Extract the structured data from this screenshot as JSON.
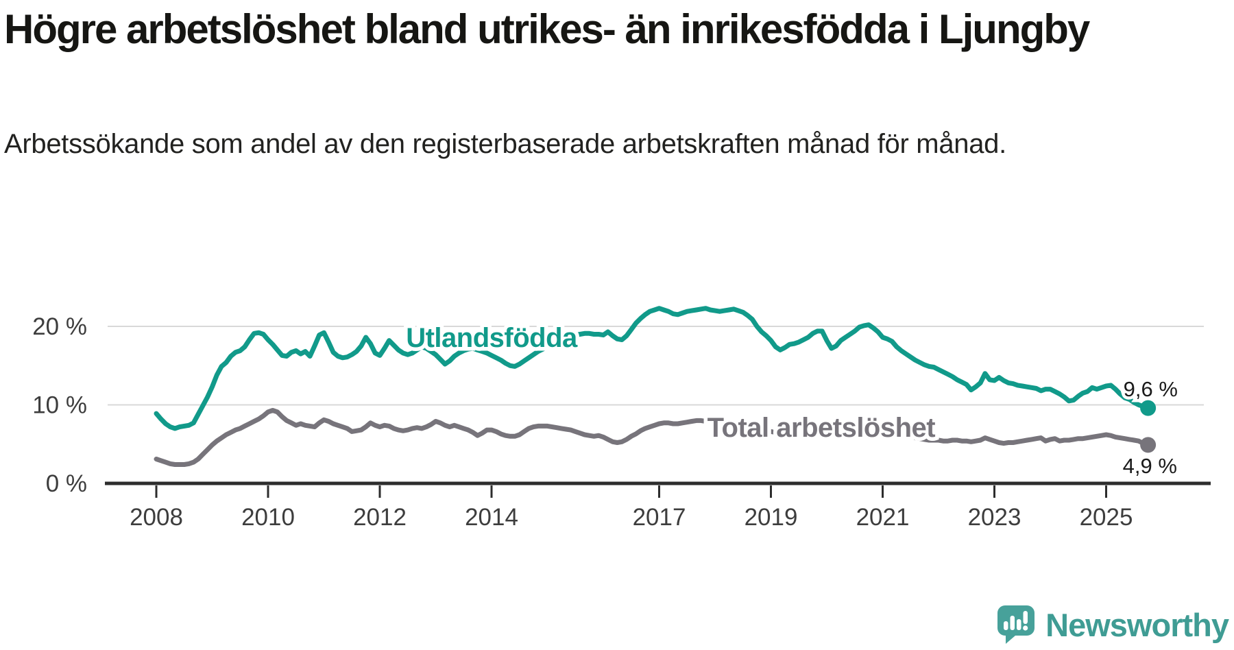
{
  "header": {
    "title": "Högre arbetslöshet bland utrikes- än inrikesfödda i Ljungby",
    "subtitle": "Arbetssökande som andel av den registerbaserade arbetskraften månad för månad."
  },
  "branding": {
    "logo_text": "Newsworthy",
    "logo_icon": "newsworthy-speech-bubble-bar-chart-icon"
  },
  "colors": {
    "foreign_born_line": "#119a8a",
    "total_line": "#77747b",
    "gridline": "#d8d8d8",
    "axis": "#2d2d2d",
    "axis_text": "#3d3d3d",
    "end_label_text": "#1a1a1a",
    "logo_teal": "#47a19a",
    "background": "#ffffff"
  },
  "chart_data": {
    "type": "line",
    "title": "Högre arbetslöshet bland utrikes- än inrikesfödda i Ljungby",
    "subtitle": "Arbetssökande som andel av den registerbaserade arbetskraften månad för månad.",
    "xlabel": "",
    "ylabel": "",
    "unit": "%",
    "grid": "horizontal-only",
    "x_start_year": 2008,
    "points_per_year": 12,
    "xlim": [
      2008,
      2025.75
    ],
    "ylim": [
      0,
      24
    ],
    "x_ticks": [
      {
        "year": 2008,
        "label": "2008"
      },
      {
        "year": 2010,
        "label": "2010"
      },
      {
        "year": 2012,
        "label": "2012"
      },
      {
        "year": 2014,
        "label": "2014"
      },
      {
        "year": 2017,
        "label": "2017"
      },
      {
        "year": 2019,
        "label": "2019"
      },
      {
        "year": 2021,
        "label": "2021"
      },
      {
        "year": 2023,
        "label": "2023"
      },
      {
        "year": 2025,
        "label": "2025"
      }
    ],
    "y_ticks": [
      {
        "value": 0,
        "label": "0 %"
      },
      {
        "value": 10,
        "label": "10 %"
      },
      {
        "value": 20,
        "label": "20 %"
      }
    ],
    "series": [
      {
        "name": "Utlandsfödda",
        "color": "#119a8a",
        "label": {
          "text": "Utlandsfödda",
          "x": 2014.0,
          "y": 18.6
        },
        "end_label": "9,6 %",
        "end_value": 9.6,
        "values": [
          8.9,
          8.2,
          7.6,
          7.2,
          7.0,
          7.2,
          7.3,
          7.4,
          7.7,
          8.8,
          9.9,
          11.0,
          12.3,
          13.8,
          14.9,
          15.4,
          16.2,
          16.7,
          16.9,
          17.4,
          18.3,
          19.1,
          19.2,
          19.0,
          18.3,
          17.7,
          17.0,
          16.3,
          16.2,
          16.7,
          16.9,
          16.5,
          16.8,
          16.2,
          17.5,
          18.9,
          19.2,
          18.0,
          16.7,
          16.2,
          16.0,
          16.1,
          16.4,
          16.8,
          17.5,
          18.6,
          17.8,
          16.6,
          16.3,
          17.2,
          18.2,
          17.6,
          17.0,
          16.6,
          16.4,
          16.6,
          17.0,
          17.4,
          17.2,
          16.8,
          16.4,
          15.8,
          15.2,
          15.6,
          16.2,
          16.6,
          16.9,
          17.1,
          17.2,
          17.0,
          16.8,
          16.6,
          16.3,
          16.0,
          15.7,
          15.3,
          15.0,
          14.9,
          15.2,
          15.6,
          16.0,
          16.4,
          16.8,
          17.1,
          17.4,
          17.7,
          18.0,
          18.3,
          18.5,
          18.7,
          18.9,
          19.0,
          19.1,
          19.1,
          19.0,
          19.0,
          18.9,
          19.3,
          18.8,
          18.4,
          18.3,
          18.8,
          19.6,
          20.4,
          21.0,
          21.5,
          21.9,
          22.1,
          22.3,
          22.1,
          21.9,
          21.6,
          21.5,
          21.7,
          21.9,
          22.0,
          22.1,
          22.2,
          22.3,
          22.1,
          22.0,
          21.9,
          22.0,
          22.1,
          22.2,
          22.0,
          21.8,
          21.4,
          20.9,
          20.0,
          19.3,
          18.8,
          18.2,
          17.4,
          17.0,
          17.3,
          17.7,
          17.8,
          18.0,
          18.3,
          18.6,
          19.1,
          19.4,
          19.4,
          18.2,
          17.2,
          17.5,
          18.2,
          18.6,
          19.0,
          19.4,
          19.9,
          20.1,
          20.2,
          19.8,
          19.3,
          18.6,
          18.4,
          18.1,
          17.4,
          16.9,
          16.5,
          16.1,
          15.7,
          15.4,
          15.1,
          14.9,
          14.8,
          14.5,
          14.2,
          13.9,
          13.6,
          13.2,
          12.9,
          12.6,
          11.9,
          12.3,
          12.8,
          14.0,
          13.2,
          13.1,
          13.5,
          13.1,
          12.8,
          12.7,
          12.5,
          12.4,
          12.3,
          12.2,
          12.1,
          11.8,
          12.0,
          12.0,
          11.7,
          11.4,
          11.0,
          10.5,
          10.6,
          11.1,
          11.5,
          11.7,
          12.2,
          12.0,
          12.2,
          12.4,
          12.5,
          12.0,
          11.4,
          10.9,
          10.7,
          10.3,
          10.0,
          9.8,
          9.6
        ]
      },
      {
        "name": "Total arbetslöshet",
        "color": "#77747b",
        "label": {
          "text": "Total arbetslöshet",
          "x": 2019.9,
          "y": 7.15
        },
        "end_label": "4,9 %",
        "end_value": 4.9,
        "values": [
          3.1,
          2.9,
          2.7,
          2.5,
          2.4,
          2.4,
          2.4,
          2.5,
          2.7,
          3.1,
          3.7,
          4.3,
          4.9,
          5.4,
          5.8,
          6.2,
          6.5,
          6.8,
          7.0,
          7.3,
          7.6,
          7.9,
          8.2,
          8.6,
          9.1,
          9.3,
          9.1,
          8.5,
          8.0,
          7.7,
          7.4,
          7.6,
          7.4,
          7.3,
          7.2,
          7.7,
          8.1,
          7.9,
          7.6,
          7.4,
          7.2,
          7.0,
          6.6,
          6.7,
          6.8,
          7.2,
          7.7,
          7.4,
          7.2,
          7.4,
          7.3,
          7.0,
          6.8,
          6.7,
          6.8,
          7.0,
          7.1,
          7.0,
          7.2,
          7.5,
          7.9,
          7.7,
          7.4,
          7.2,
          7.4,
          7.2,
          7.0,
          6.8,
          6.5,
          6.1,
          6.4,
          6.8,
          6.8,
          6.6,
          6.3,
          6.1,
          6.0,
          6.0,
          6.2,
          6.6,
          7.0,
          7.2,
          7.3,
          7.3,
          7.3,
          7.2,
          7.1,
          7.0,
          6.9,
          6.8,
          6.6,
          6.4,
          6.2,
          6.1,
          6.0,
          6.1,
          5.9,
          5.6,
          5.3,
          5.2,
          5.3,
          5.6,
          6.0,
          6.3,
          6.7,
          7.0,
          7.2,
          7.4,
          7.6,
          7.7,
          7.7,
          7.6,
          7.6,
          7.7,
          7.8,
          7.9,
          8.0,
          8.0,
          7.9,
          7.8,
          7.6,
          7.5,
          7.4,
          7.3,
          7.2,
          7.1,
          7.0,
          6.9,
          6.8,
          6.8,
          6.7,
          6.7,
          6.6,
          6.5,
          6.4,
          6.4,
          6.3,
          6.3,
          6.3,
          6.4,
          6.4,
          6.5,
          6.5,
          6.6,
          6.7,
          6.8,
          7.0,
          7.2,
          7.3,
          7.3,
          7.2,
          7.1,
          7.0,
          6.9,
          6.8,
          6.8,
          6.8,
          6.7,
          6.5,
          6.3,
          6.2,
          6.0,
          5.9,
          5.8,
          5.7,
          5.6,
          5.5,
          5.5,
          5.5,
          5.4,
          5.4,
          5.5,
          5.5,
          5.4,
          5.4,
          5.3,
          5.4,
          5.5,
          5.8,
          5.6,
          5.4,
          5.2,
          5.1,
          5.2,
          5.2,
          5.3,
          5.4,
          5.5,
          5.6,
          5.7,
          5.8,
          5.4,
          5.6,
          5.7,
          5.4,
          5.5,
          5.5,
          5.6,
          5.7,
          5.7,
          5.8,
          5.9,
          6.0,
          6.1,
          6.2,
          6.1,
          5.9,
          5.8,
          5.7,
          5.6,
          5.5,
          5.4,
          5.1,
          4.9
        ]
      }
    ]
  }
}
